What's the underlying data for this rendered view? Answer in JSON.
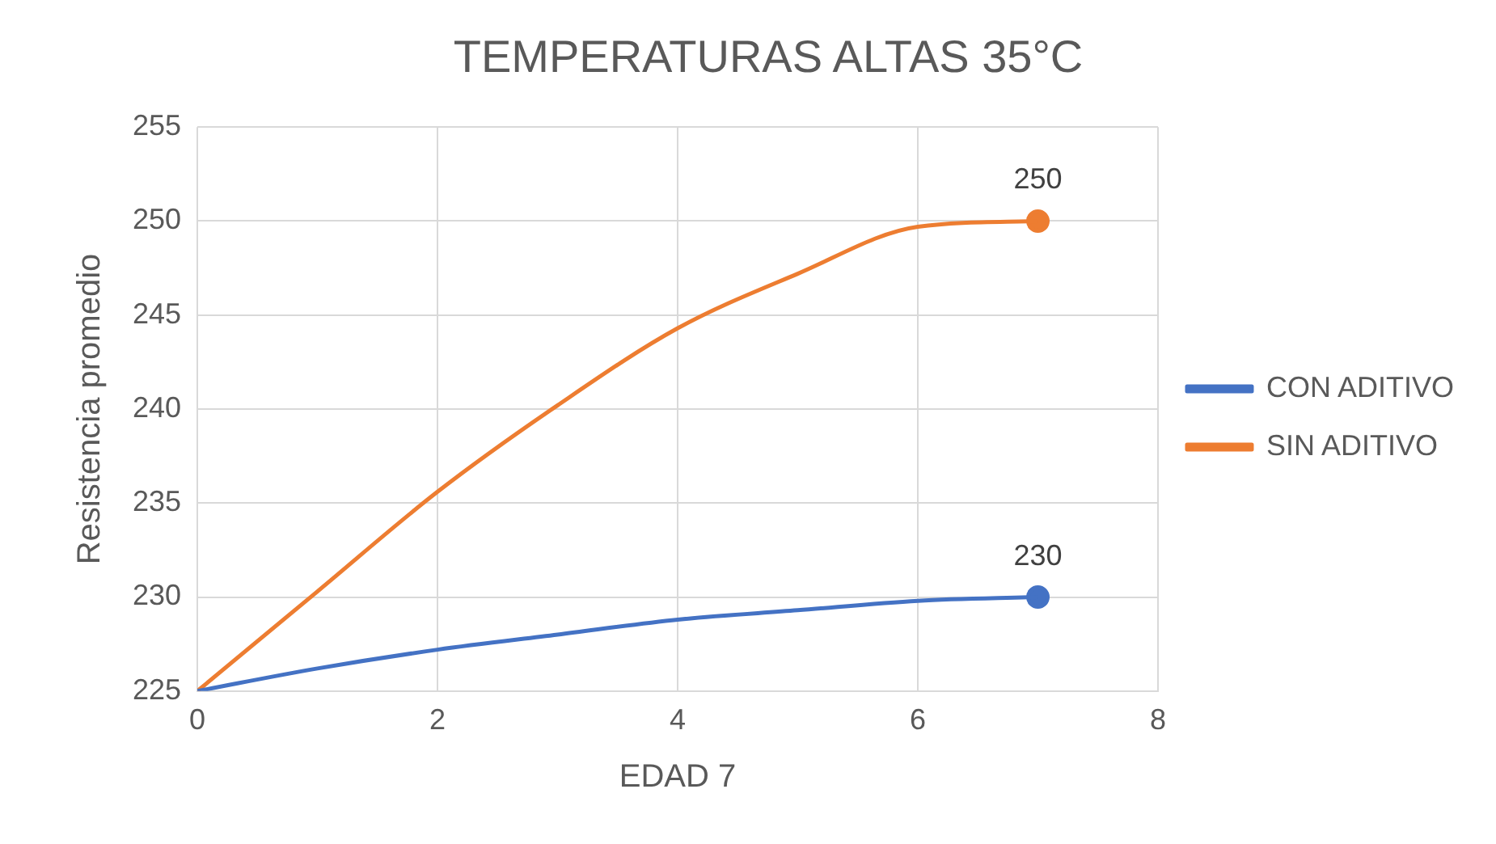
{
  "chart_data": {
    "type": "line",
    "title": "TEMPERATURAS ALTAS 35°C",
    "xlabel": "EDAD 7",
    "ylabel": "Resistencia promedio",
    "x": [
      0,
      1,
      2,
      3,
      4,
      5,
      6,
      7
    ],
    "series": [
      {
        "name": "CON ADITIVO",
        "color": "#4472c4",
        "marker": "none",
        "values": [
          225,
          226.2,
          227.2,
          228,
          228.8,
          229.3,
          229.8,
          230
        ]
      },
      {
        "name": "SIN ADITIVO",
        "color": "#ed7d31",
        "marker": "none",
        "values": [
          225,
          230.3,
          235.6,
          240.2,
          244.3,
          247.2,
          249.7,
          250
        ]
      },
      {
        "type": "scatter",
        "color": "#4472c4",
        "x": [
          7
        ],
        "values": [
          230
        ],
        "value_labels": [
          "230"
        ]
      },
      {
        "type": "scatter",
        "color": "#ed7d31",
        "x": [
          7
        ],
        "values": [
          250
        ],
        "value_labels": [
          "250"
        ]
      }
    ],
    "xlim": [
      0,
      8
    ],
    "xticks": [
      0,
      2,
      4,
      6,
      8
    ],
    "ylim": [
      225,
      255
    ],
    "yticks": [
      225,
      230,
      235,
      240,
      245,
      250,
      255
    ],
    "grid": true,
    "legend": "right",
    "marker": "circle"
  }
}
